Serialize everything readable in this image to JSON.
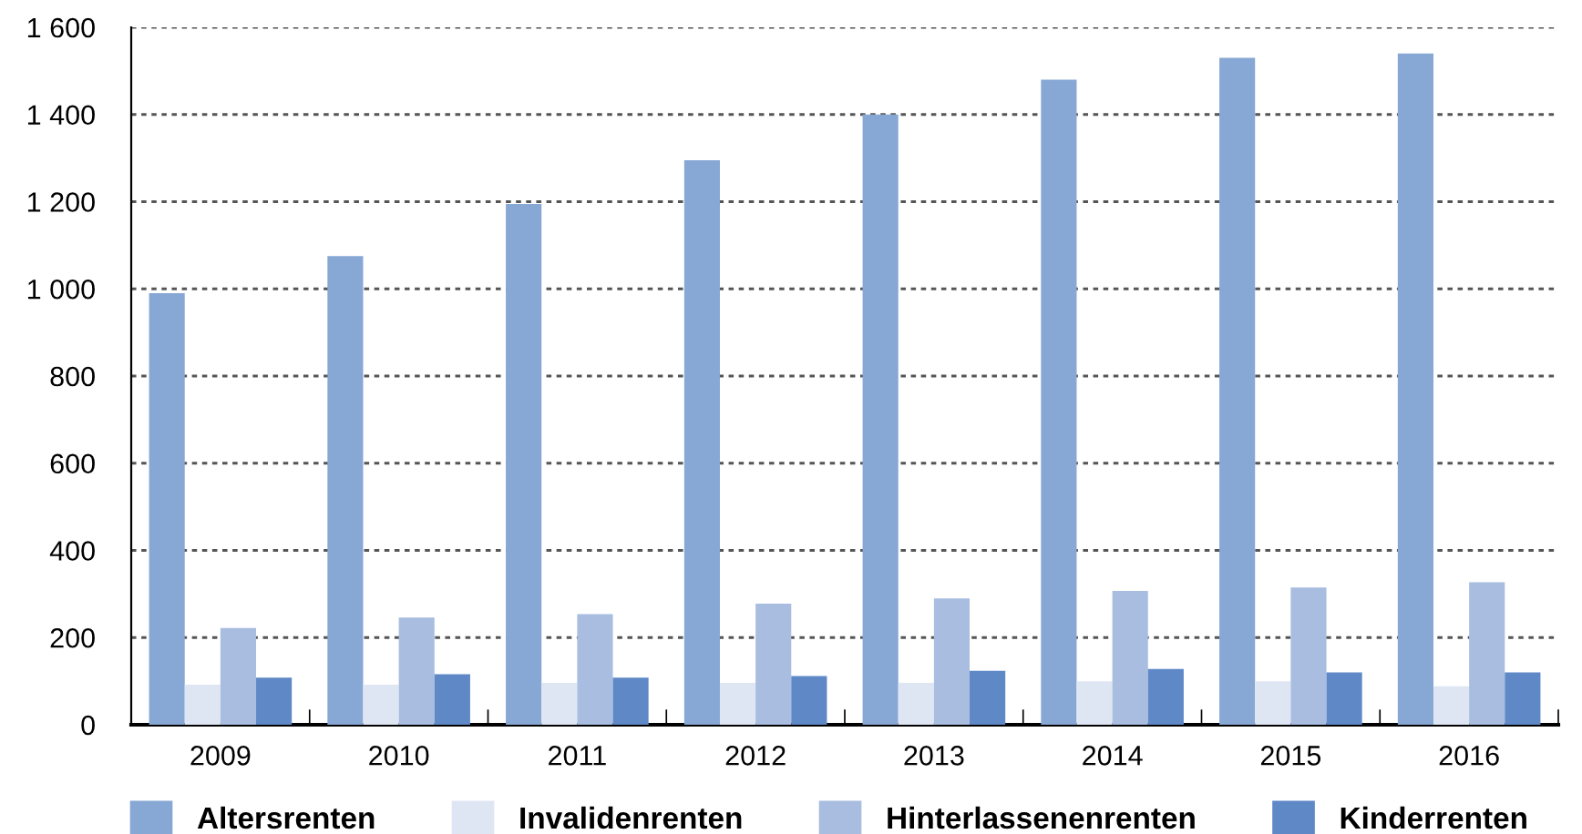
{
  "chart_data": {
    "type": "bar",
    "categories": [
      "2009",
      "2010",
      "2011",
      "2012",
      "2013",
      "2014",
      "2015",
      "2016"
    ],
    "series": [
      {
        "name": "Altersrenten",
        "color": "#87a7d4",
        "values": [
          990,
          1075,
          1195,
          1295,
          1400,
          1480,
          1530,
          1540
        ]
      },
      {
        "name": "Invalidenrenten",
        "color": "#dfe6f3",
        "values": [
          92,
          92,
          96,
          96,
          96,
          100,
          100,
          88
        ]
      },
      {
        "name": "Hinterlassenenrenten",
        "color": "#a8bde0",
        "values": [
          222,
          246,
          254,
          278,
          290,
          307,
          315,
          327
        ]
      },
      {
        "name": "Kinderrenten",
        "color": "#5f88c6",
        "values": [
          108,
          116,
          108,
          112,
          124,
          128,
          120,
          120
        ]
      }
    ],
    "ylim": [
      0,
      1600
    ],
    "yticks": [
      {
        "value": 0,
        "label": "0"
      },
      {
        "value": 200,
        "label": "200"
      },
      {
        "value": 400,
        "label": "400"
      },
      {
        "value": 600,
        "label": "600"
      },
      {
        "value": 800,
        "label": "800"
      },
      {
        "value": 1000,
        "label": "1 000"
      },
      {
        "value": 1200,
        "label": "1 200"
      },
      {
        "value": 1400,
        "label": "1 400"
      },
      {
        "value": 1600,
        "label": "1 600"
      }
    ],
    "grid": "y",
    "legend": "bottom"
  }
}
